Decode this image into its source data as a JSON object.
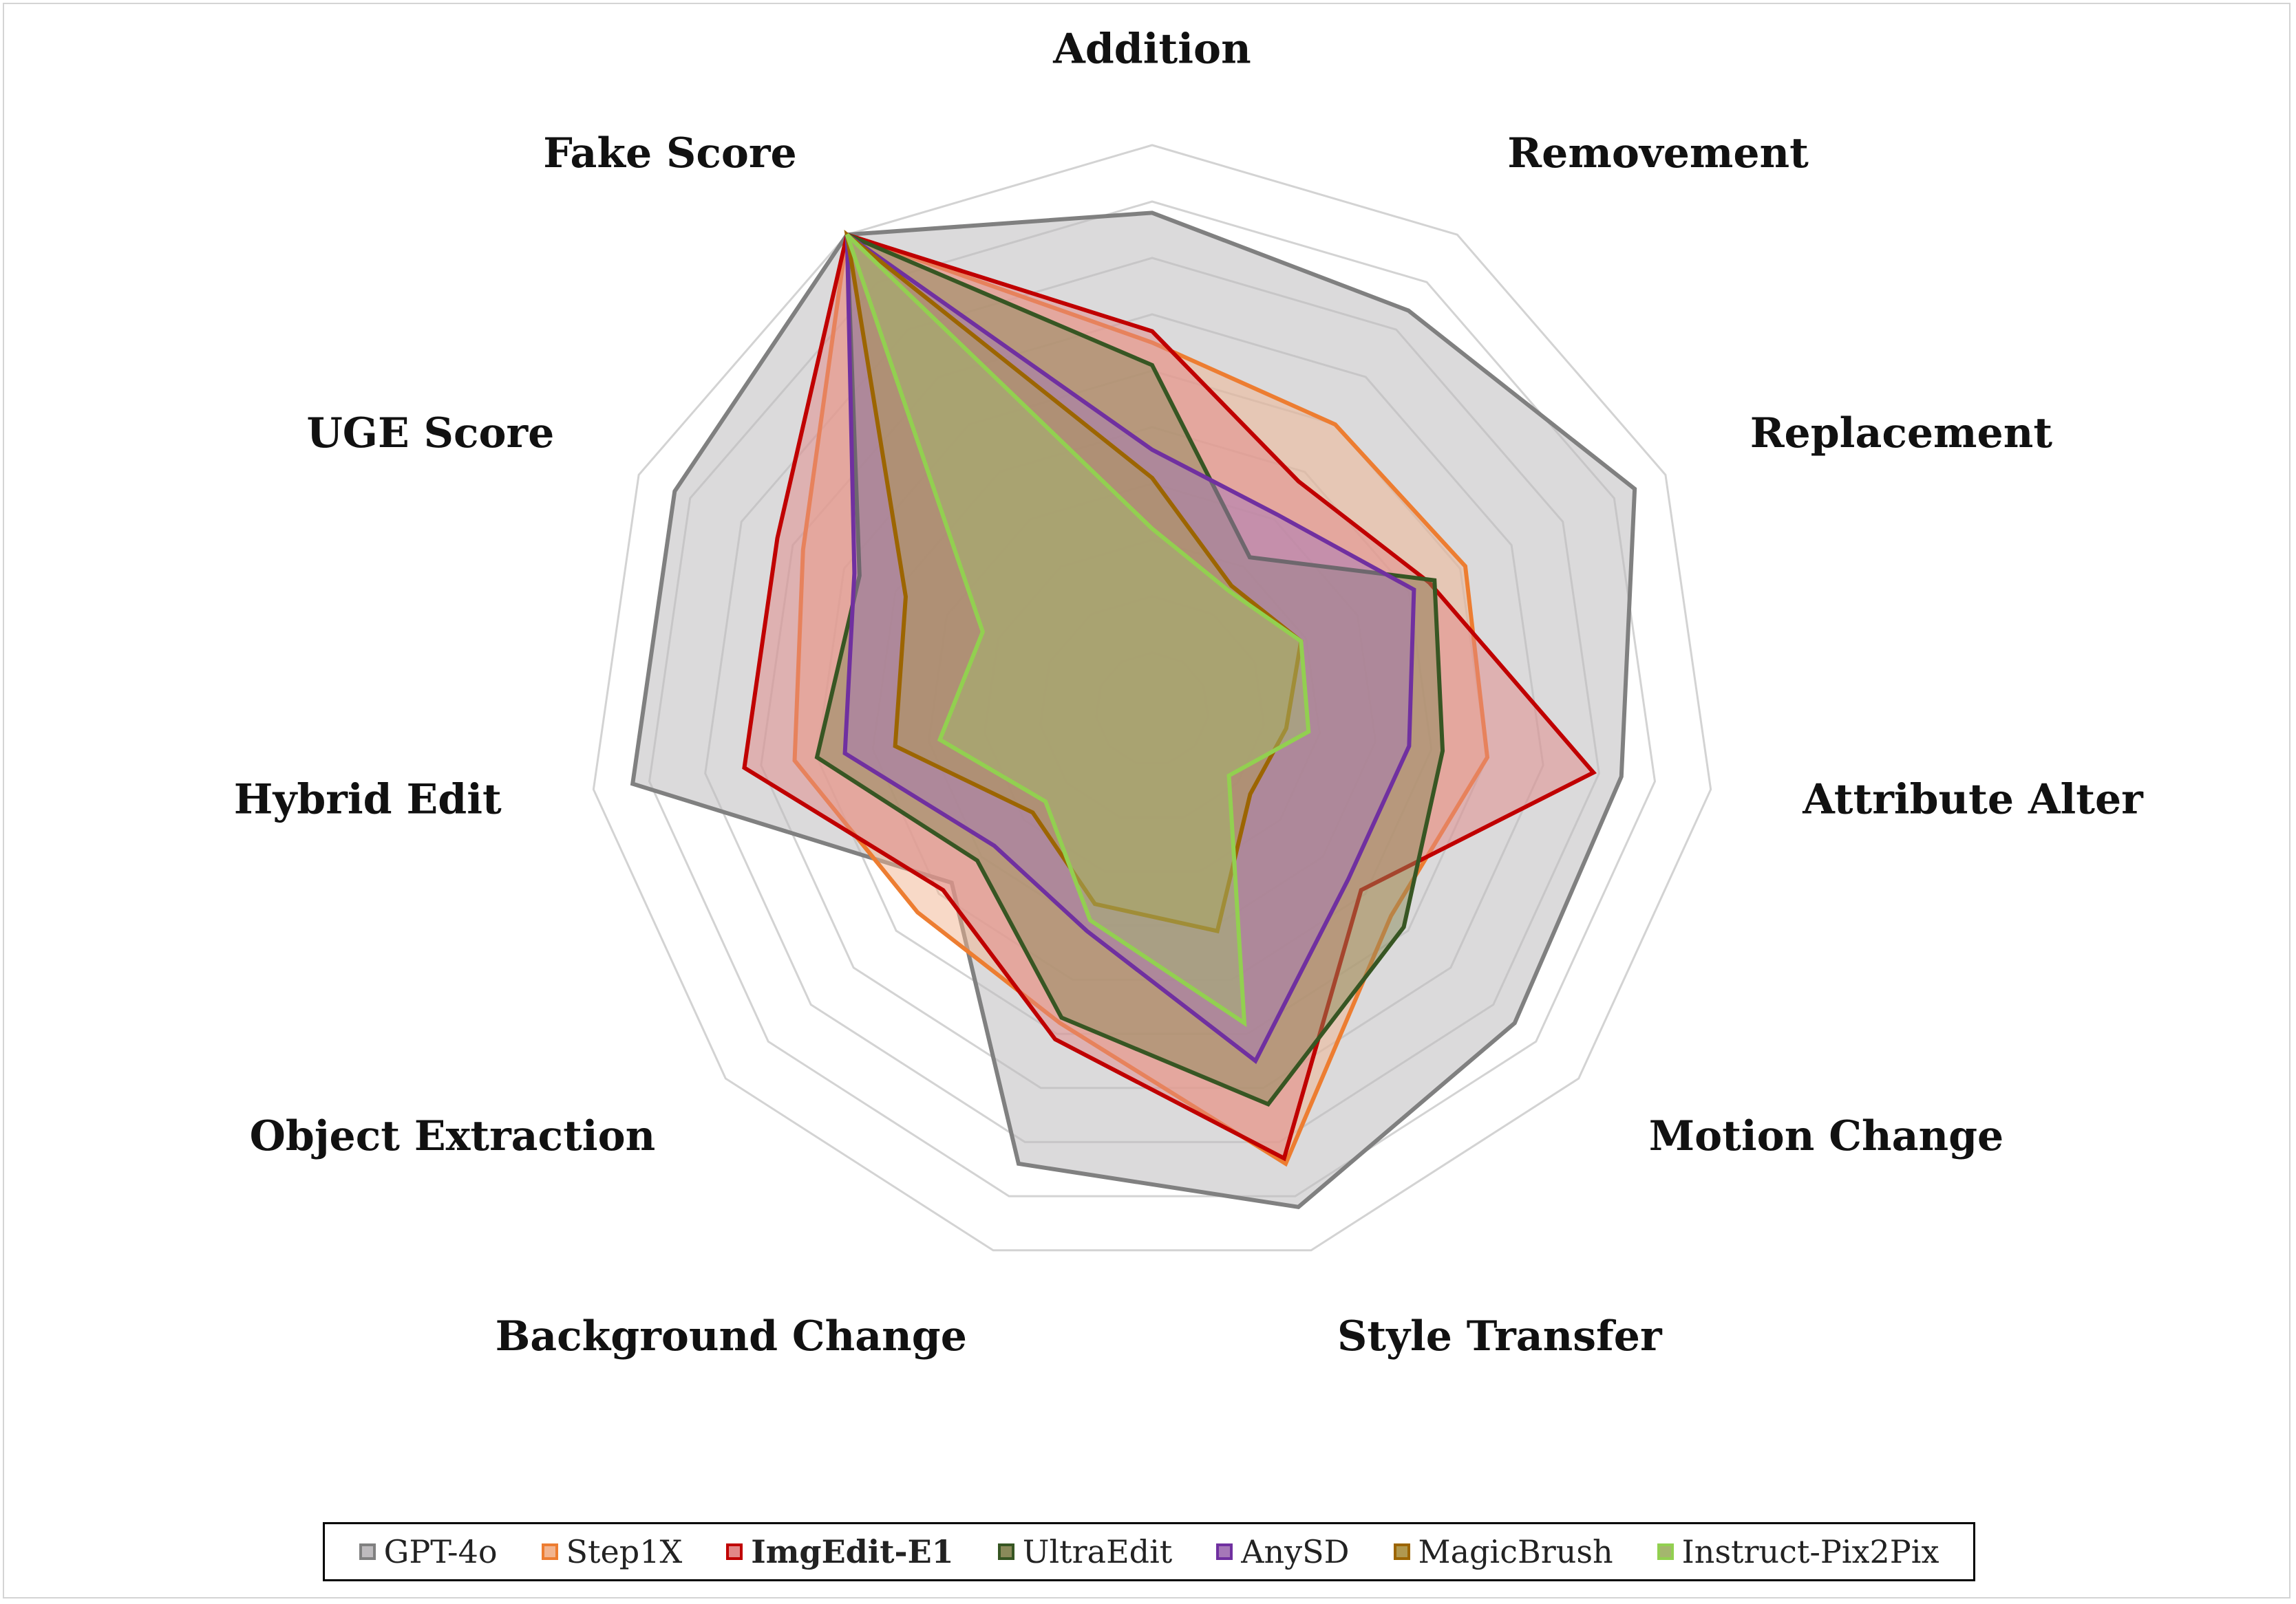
{
  "chart_data": {
    "type": "radar",
    "axes": [
      "Addition",
      "Removement",
      "Replacement",
      "Attribute Alter",
      "Motion Change",
      "Style Transfer",
      "Background Change",
      "Object Extraction",
      "Hybrid Edit",
      "UGE Score",
      "Fake Score"
    ],
    "rmax": 10,
    "grid": true,
    "legend_position": "bottom",
    "series": [
      {
        "name": "GPT-4o",
        "color": "#808080",
        "fill": "#bebbbe",
        "values": [
          8.8,
          8.4,
          9.4,
          8.4,
          8.5,
          9.2,
          8.4,
          4.7,
          9.3,
          9.3,
          10
        ]
      },
      {
        "name": "Step1X",
        "color": "#ed7d31",
        "fill": "#f2b48f",
        "values": [
          6.5,
          6.0,
          6.1,
          6.0,
          5.6,
          8.4,
          5.8,
          5.5,
          6.4,
          6.8,
          10
        ]
      },
      {
        "name": "ImgEdit-E1",
        "color": "#c00000",
        "fill": "#e28888",
        "values": [
          6.7,
          4.8,
          5.4,
          7.9,
          4.9,
          8.3,
          6.1,
          4.9,
          7.3,
          7.3,
          10
        ]
      },
      {
        "name": "UltraEdit",
        "color": "#375623",
        "fill": "#8a8a5a",
        "values": [
          6.1,
          3.2,
          5.5,
          5.2,
          5.9,
          7.3,
          5.7,
          4.1,
          6.0,
          5.7,
          10
        ]
      },
      {
        "name": "AnySD",
        "color": "#7030a0",
        "fill": "#a678b8",
        "values": [
          4.6,
          4.1,
          5.1,
          4.6,
          4.6,
          6.5,
          4.1,
          3.7,
          5.5,
          5.8,
          10
        ]
      },
      {
        "name": "MagicBrush",
        "color": "#9c6500",
        "fill": "#b0984f",
        "values": [
          4.1,
          2.6,
          2.9,
          2.4,
          2.3,
          4.1,
          3.6,
          2.8,
          4.6,
          4.8,
          10
        ]
      },
      {
        "name": "Instruct-Pix2Pix",
        "color": "#92d050",
        "fill": "#a4b66e",
        "values": [
          3.2,
          2.5,
          2.9,
          2.8,
          1.8,
          5.8,
          3.9,
          2.5,
          3.8,
          3.3,
          10
        ]
      }
    ]
  }
}
